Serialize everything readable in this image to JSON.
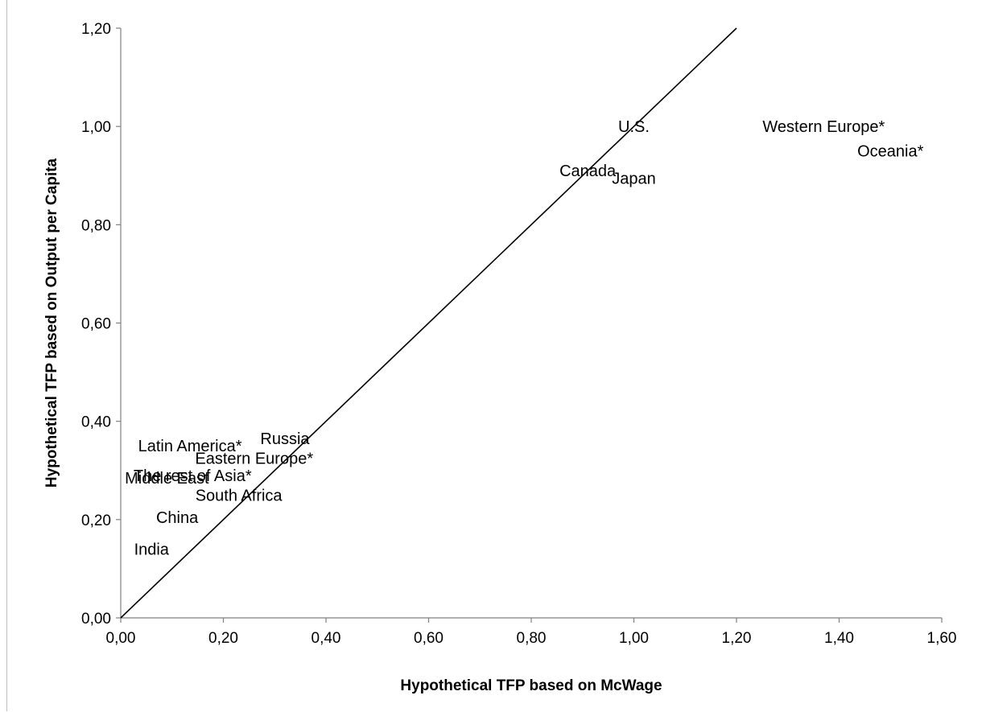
{
  "chart_data": {
    "type": "scatter",
    "title": "",
    "xlabel": "Hypothetical TFP based on McWage",
    "ylabel": "Hypothetical TFP based on Output per Capita",
    "xlim": [
      0,
      1.6
    ],
    "ylim": [
      0,
      1.2
    ],
    "x_ticks": [
      "0,00",
      "0,20",
      "0,40",
      "0,60",
      "0,80",
      "1,00",
      "1,20",
      "1,40",
      "1,60"
    ],
    "y_ticks": [
      "0,00",
      "0,20",
      "0,40",
      "0,60",
      "0,80",
      "1,00",
      "1,20"
    ],
    "grid": false,
    "legend": "none",
    "reference_line": {
      "x": [
        0,
        1.2
      ],
      "y": [
        0,
        1.2
      ]
    },
    "points": [
      {
        "label": "U.S.",
        "x": 1.0,
        "y": 1.0
      },
      {
        "label": "Western Europe*",
        "x": 1.37,
        "y": 1.0
      },
      {
        "label": "Oceania*",
        "x": 1.5,
        "y": 0.95
      },
      {
        "label": "Canada",
        "x": 0.91,
        "y": 0.91
      },
      {
        "label": "Japan",
        "x": 1.0,
        "y": 0.895
      },
      {
        "label": "Russia",
        "x": 0.32,
        "y": 0.365
      },
      {
        "label": "Latin America*",
        "x": 0.135,
        "y": 0.35
      },
      {
        "label": "Eastern Europe*",
        "x": 0.26,
        "y": 0.325
      },
      {
        "label": "The rest of Asia*",
        "x": 0.14,
        "y": 0.29
      },
      {
        "label": "Middle East",
        "x": 0.09,
        "y": 0.285
      },
      {
        "label": "South Africa",
        "x": 0.23,
        "y": 0.25
      },
      {
        "label": "China",
        "x": 0.11,
        "y": 0.205
      },
      {
        "label": "India",
        "x": 0.06,
        "y": 0.14
      }
    ]
  }
}
